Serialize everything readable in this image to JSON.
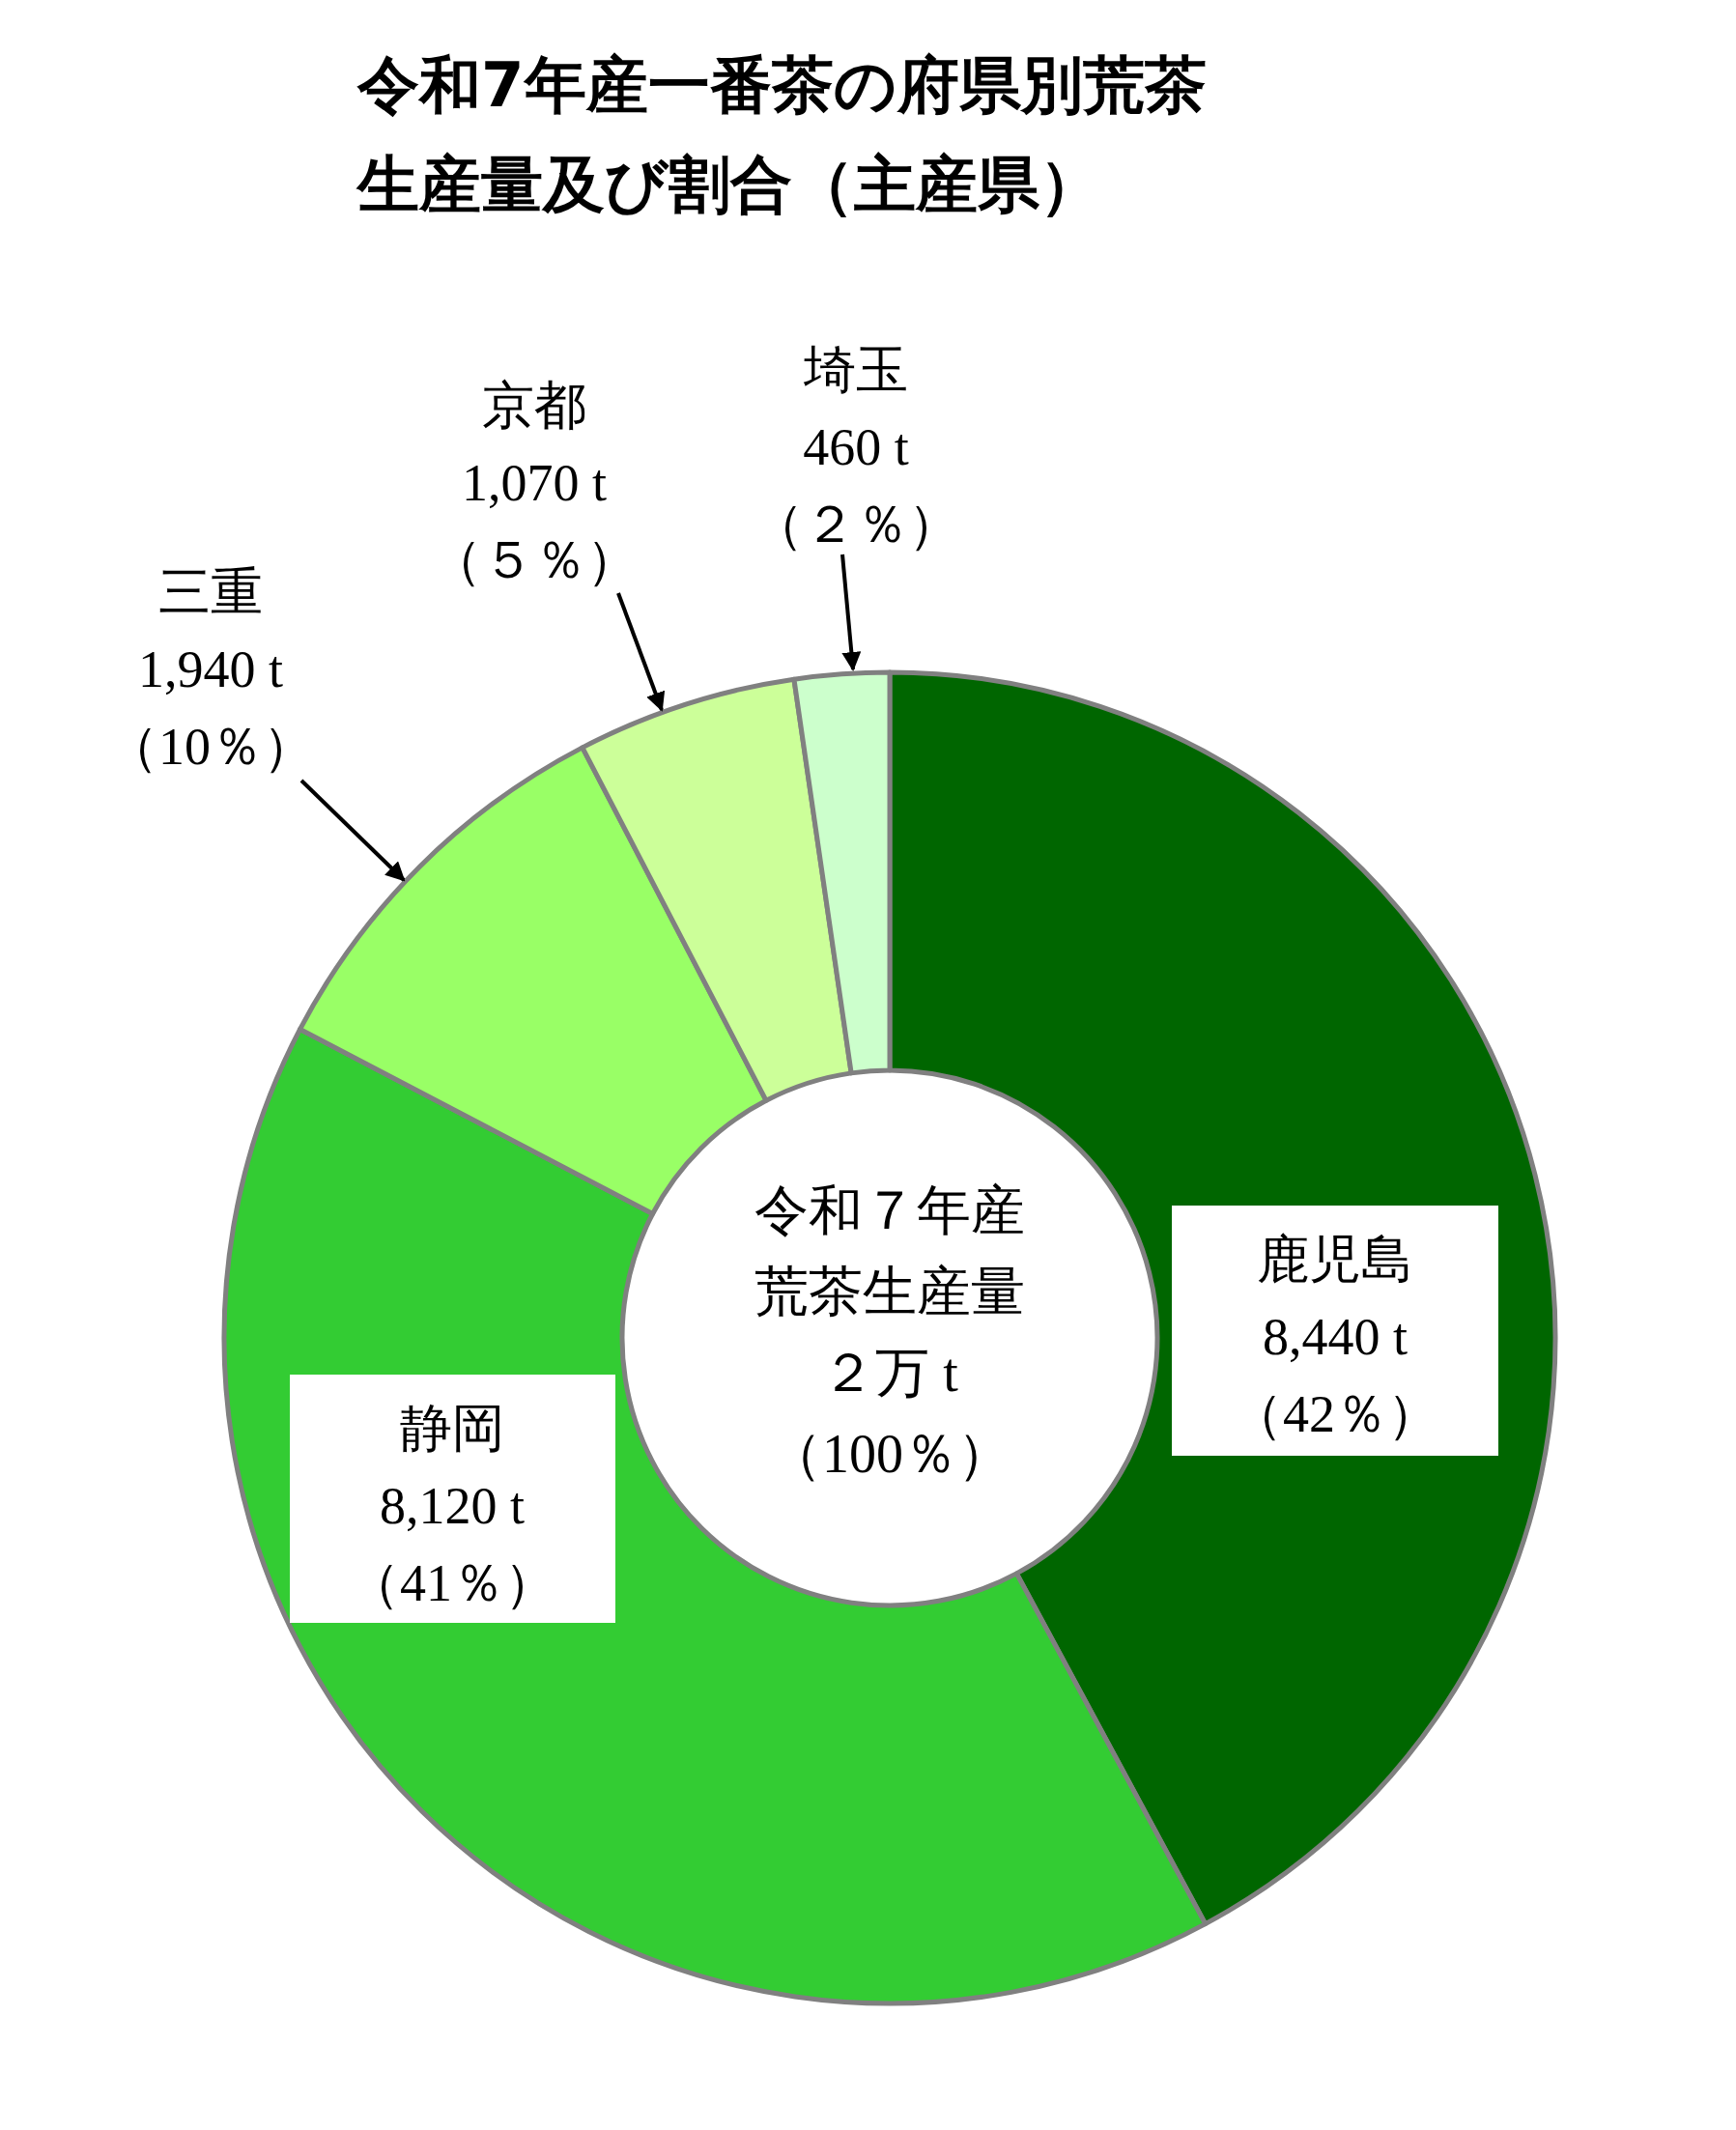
{
  "chart_data": {
    "type": "donut",
    "title": "令和7年産一番茶の府県別荒茶生産量及び割合（主産県）",
    "categories": [
      "鹿児島",
      "静岡",
      "三重",
      "京都",
      "埼玉"
    ],
    "values": [
      8440,
      8120,
      1940,
      1070,
      460
    ],
    "colors": [
      "#006600",
      "#33cc33",
      "#99ff66",
      "#ccff99",
      "#ccffcc"
    ],
    "value_labels": [
      "8,440 t\n（42％）",
      "8,120 t\n（41％）",
      "1,940 t\n（10％）",
      "1,070 t\n（５％）",
      "460 t\n（２％）"
    ],
    "annotations": [
      "令和７年産荒茶生産量",
      "２万 t\n（100％）"
    ]
  }
}
